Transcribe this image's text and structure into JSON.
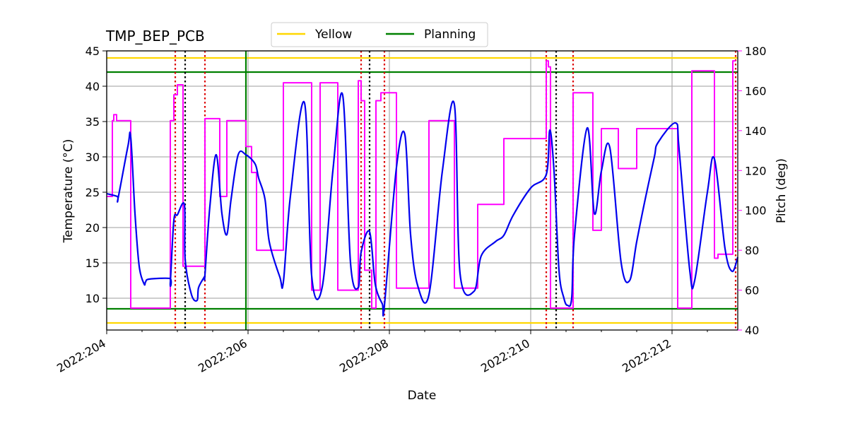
{
  "chart_data": {
    "type": "line",
    "title": "TMP_BEP_PCB",
    "xlabel": "Date",
    "ylabel": "Temperature ($^\\circ$C)",
    "ylabel_display": "Temperature (°C)",
    "y2label": "Pitch (deg)",
    "xlim": [
      204.0,
      212.93
    ],
    "ylim": [
      5.5,
      45
    ],
    "y2lim": [
      40,
      180
    ],
    "x_ticks": [
      204,
      206,
      208,
      210,
      212
    ],
    "x_tick_labels": [
      "2022:204",
      "2022:206",
      "2022:208",
      "2022:210",
      "2022:212"
    ],
    "y_ticks": [
      10,
      15,
      20,
      25,
      30,
      35,
      40,
      45
    ],
    "y2_ticks": [
      40,
      60,
      80,
      100,
      120,
      140,
      160,
      180
    ],
    "grid": true,
    "legend": {
      "placement": "top-center",
      "entries": [
        {
          "label": "Yellow",
          "color": "#ffd700"
        },
        {
          "label": "Planning",
          "color": "#008000"
        }
      ]
    },
    "colors": {
      "temperature": "#0000ee",
      "pitch": "#ff00ff",
      "yellow": "#ffd700",
      "planning": "#008000",
      "red_marker": "#dd0000",
      "black_marker": "#000000"
    },
    "limits": {
      "yellow": [
        6.5,
        44
      ],
      "planning": [
        8.5,
        42
      ]
    },
    "vertical_markers": {
      "red_dotted": [
        204.97,
        205.39,
        207.6,
        207.93,
        210.22,
        210.6,
        212.9
      ],
      "black_dotted": [
        205.11,
        207.72,
        210.36
      ],
      "green_solid": [
        205.97
      ]
    },
    "series": [
      {
        "name": "Temperature",
        "axis": "left",
        "x": [
          204.0,
          204.15,
          204.16,
          204.3,
          204.34,
          204.4,
          204.46,
          204.53,
          204.55,
          204.6,
          204.89,
          204.9,
          204.95,
          205.0,
          205.1,
          205.11,
          205.2,
          205.28,
          205.3,
          205.38,
          205.39,
          205.46,
          205.55,
          205.63,
          205.7,
          205.76,
          205.86,
          205.97,
          206.1,
          206.15,
          206.24,
          206.3,
          206.45,
          206.5,
          206.6,
          206.8,
          206.9,
          207.05,
          207.2,
          207.34,
          207.45,
          207.56,
          207.6,
          207.72,
          207.8,
          207.9,
          207.93,
          208.1,
          208.22,
          208.3,
          208.4,
          208.56,
          208.75,
          208.92,
          209.0,
          209.2,
          209.3,
          209.5,
          209.62,
          209.75,
          210.0,
          210.22,
          210.27,
          210.33,
          210.4,
          210.47,
          210.52,
          210.58,
          210.62,
          210.8,
          210.9,
          211.0,
          211.12,
          211.28,
          211.4,
          211.5,
          211.62,
          211.75,
          211.8,
          212.05,
          212.1,
          212.25,
          212.32,
          212.5,
          212.6,
          212.75,
          212.85,
          212.93
        ],
        "y": [
          24.8,
          24.4,
          24.1,
          31.5,
          32.8,
          22.0,
          14.5,
          12.0,
          12.3,
          12.7,
          12.8,
          12.2,
          21.0,
          21.8,
          23.2,
          15.5,
          10.5,
          9.7,
          11.5,
          13.0,
          13.3,
          23.0,
          30.3,
          22.0,
          19.0,
          24.0,
          30.3,
          30.3,
          29.0,
          27.0,
          24.0,
          18.0,
          13.0,
          12.3,
          24.5,
          37.6,
          13.2,
          11.6,
          28.0,
          38.7,
          15.0,
          11.5,
          16.5,
          19.4,
          12.0,
          9.2,
          9.0,
          28.5,
          33.1,
          19.0,
          11.8,
          10.5,
          28.0,
          37.4,
          13.5,
          11.0,
          16.0,
          18.0,
          18.9,
          21.7,
          25.6,
          27.5,
          33.8,
          28.0,
          14.0,
          10.0,
          9.0,
          10.0,
          19.0,
          34.1,
          22.0,
          28.0,
          31.3,
          15.0,
          12.5,
          18.0,
          24.0,
          30.0,
          32.0,
          34.8,
          31.0,
          14.0,
          12.5,
          25.0,
          29.7,
          17.0,
          13.8,
          15.8
        ]
      },
      {
        "name": "Pitch",
        "axis": "right",
        "x": [
          204.0,
          204.08,
          204.08,
          204.1,
          204.1,
          204.14,
          204.14,
          204.17,
          204.17,
          204.34,
          204.34,
          204.9,
          204.9,
          204.95,
          204.95,
          205.0,
          205.0,
          205.03,
          205.03,
          205.08,
          205.08,
          205.11,
          205.11,
          205.39,
          205.39,
          205.6,
          205.6,
          205.7,
          205.7,
          205.78,
          205.78,
          205.97,
          205.97,
          206.05,
          206.05,
          206.12,
          206.12,
          206.26,
          206.26,
          206.5,
          206.5,
          206.8,
          206.8,
          206.9,
          206.9,
          207.02,
          207.02,
          207.27,
          207.27,
          207.56,
          207.56,
          207.6,
          207.6,
          207.65,
          207.65,
          207.75,
          207.75,
          207.81,
          207.81,
          207.88,
          207.88,
          207.96,
          207.96,
          208.1,
          208.1,
          208.22,
          208.22,
          208.56,
          208.56,
          208.92,
          208.92,
          209.25,
          209.25,
          209.62,
          209.62,
          210.22,
          210.22,
          210.25,
          210.25,
          210.28,
          210.28,
          210.58,
          210.58,
          210.6,
          210.6,
          210.88,
          210.88,
          211.0,
          211.0,
          211.24,
          211.24,
          211.5,
          211.5,
          211.74,
          211.74,
          212.08,
          212.08,
          212.28,
          212.28,
          212.6,
          212.6,
          212.65,
          212.65,
          212.86,
          212.86,
          212.9
        ],
        "y": [
          107,
          107,
          145,
          145,
          148,
          148,
          145,
          145,
          145,
          145,
          51,
          51,
          145,
          145,
          158,
          158,
          163,
          163,
          163,
          163,
          72,
          72,
          72,
          72,
          146,
          146,
          107,
          107,
          145,
          145,
          145,
          145,
          132,
          132,
          119,
          119,
          80,
          80,
          80,
          80,
          164,
          164,
          164,
          164,
          60,
          60,
          164,
          164,
          60,
          60,
          165,
          165,
          155,
          155,
          70,
          70,
          51,
          51,
          155,
          155,
          159,
          159,
          159,
          159,
          61,
          61,
          61,
          61,
          145,
          145,
          61,
          61,
          103,
          103,
          136,
          136,
          175,
          175,
          172,
          172,
          51,
          51,
          51,
          51,
          159,
          159,
          90,
          90,
          141,
          141,
          121,
          121,
          141,
          141,
          141,
          141,
          51,
          51,
          170,
          170,
          76,
          76,
          78,
          78,
          175,
          175
        ]
      }
    ]
  }
}
